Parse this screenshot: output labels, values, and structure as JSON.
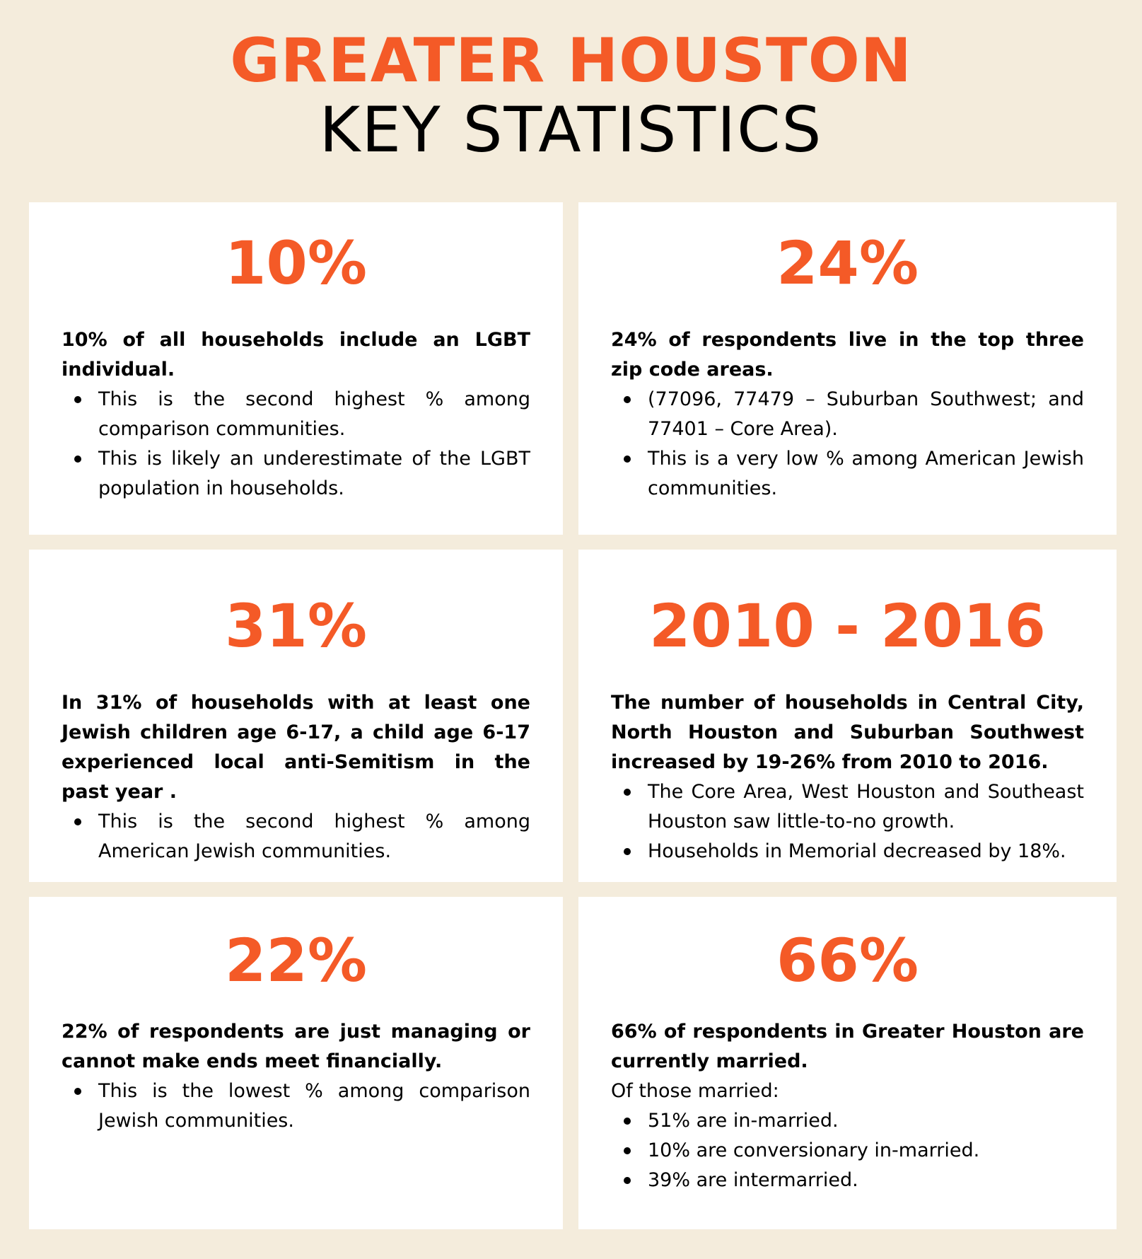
{
  "header": {
    "title": "GREATER HOUSTON",
    "subtitle": "KEY STATISTICS"
  },
  "cards": [
    {
      "stat": "10%",
      "headline": "10% of all households include an LGBT individual.",
      "bullets": [
        "This is the second highest % among comparison communities.",
        "This is likely an underestimate of the LGBT population in households."
      ]
    },
    {
      "stat": "24%",
      "headline": "24% of respondents live in the top three zip code areas.",
      "bullets": [
        "(77096, 77479 – Suburban Southwest; and 77401 – Core Area).",
        "This is a very low % among American Jewish communities."
      ]
    },
    {
      "stat": "31%",
      "headline": "In 31% of households with at least one Jewish children age 6-17, a child age 6-17 experienced local anti-Semitism in the past year .",
      "bullets": [
        "This is the second highest % among American Jewish communities."
      ]
    },
    {
      "stat": "2010 - 2016",
      "headline": "The number of households in Central City, North Houston and Suburban Southwest increased by 19-26% from 2010 to 2016.",
      "bullets": [
        "The Core Area, West Houston and Southeast Houston saw little-to-no growth.",
        "Households in Memorial decreased by 18%."
      ]
    },
    {
      "stat": "22%",
      "headline": "22% of respondents are just managing or cannot make ends meet financially.",
      "bullets": [
        "This is the lowest % among comparison Jewish communities."
      ]
    },
    {
      "stat": "66%",
      "headline": "66% of respondents in Greater Houston are currently married.",
      "intro": "Of those married:",
      "bullets": [
        "51% are in-married.",
        "10% are conversionary in-married.",
        "39% are intermarried."
      ]
    }
  ]
}
